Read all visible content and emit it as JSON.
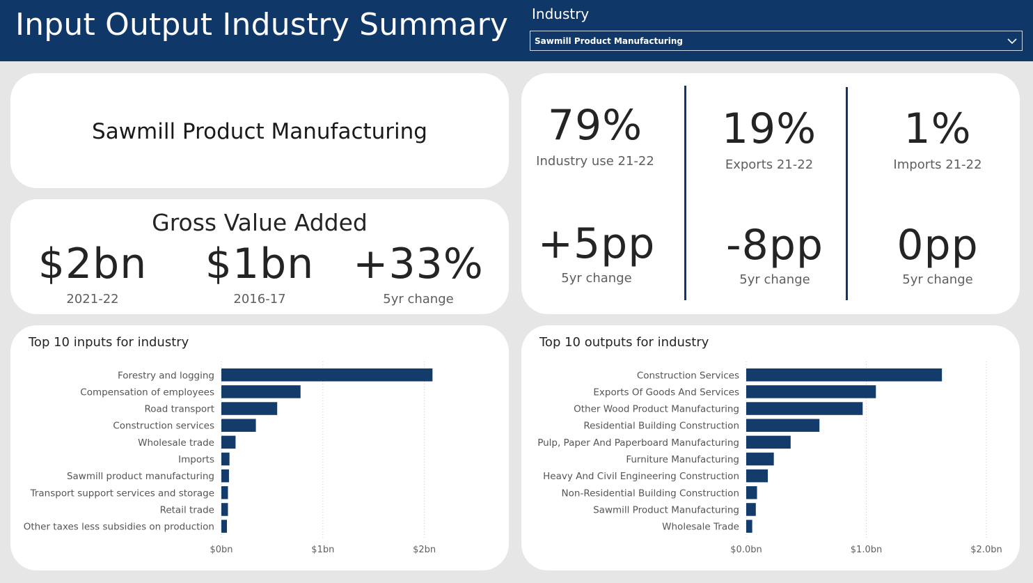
{
  "header": {
    "title": "Input Output Industry Summary",
    "slicer_label": "Industry",
    "slicer_value": "Sawmill Product Manufacturing"
  },
  "industry_card": {
    "name": "Sawmill Product Manufacturing"
  },
  "gva": {
    "title": "Gross Value Added",
    "kpis": [
      {
        "value": "$2bn",
        "label": "2021-22"
      },
      {
        "value": "$1bn",
        "label": "2016-17"
      },
      {
        "value": "+33%",
        "label": "5yr change"
      }
    ]
  },
  "shares": {
    "top": [
      {
        "value": "79%",
        "label": "Industry use 21-22"
      },
      {
        "value": "19%",
        "label": "Exports 21-22"
      },
      {
        "value": "1%",
        "label": "Imports 21-22"
      }
    ],
    "bottom": [
      {
        "value": "+5pp",
        "label": "5yr change"
      },
      {
        "value": "-8pp",
        "label": "5yr change"
      },
      {
        "value": "0pp",
        "label": "5yr change"
      }
    ]
  },
  "colors": {
    "brand": "#0f3869",
    "bar": "#133c6b",
    "background": "#e6e6e6"
  },
  "chart_data": [
    {
      "type": "bar",
      "orientation": "horizontal",
      "title": "Top 10 inputs for industry",
      "categories": [
        "Forestry and logging",
        "Compensation of employees",
        "Road transport",
        "Construction services",
        "Wholesale trade",
        "Imports",
        "Sawmill product manufacturing",
        "Transport support services and storage",
        "Retail trade",
        "Other taxes less subsidies on production"
      ],
      "values": [
        2.08,
        0.78,
        0.55,
        0.34,
        0.14,
        0.08,
        0.075,
        0.065,
        0.065,
        0.055
      ],
      "xlim": [
        0,
        2.4
      ],
      "xticks": [
        0,
        1,
        2
      ],
      "xtick_labels": [
        "$0bn",
        "$1bn",
        "$2bn"
      ],
      "unit": "$bn",
      "grid": true
    },
    {
      "type": "bar",
      "orientation": "horizontal",
      "title": "Top 10 outputs for industry",
      "categories": [
        "Construction Services",
        "Exports Of Goods And Services",
        "Other Wood Product Manufacturing",
        "Residential Building Construction",
        "Pulp, Paper And Paperboard Manufacturing",
        "Furniture Manufacturing",
        "Heavy And Civil Engineering Construction",
        "Non-Residential Building Construction",
        "Sawmill Product Manufacturing",
        "Wholesale Trade"
      ],
      "values": [
        1.63,
        1.08,
        0.97,
        0.61,
        0.37,
        0.23,
        0.18,
        0.09,
        0.08,
        0.05
      ],
      "xlim": [
        0,
        2.0
      ],
      "xticks": [
        0,
        1,
        2
      ],
      "xtick_labels": [
        "$0.0bn",
        "$1.0bn",
        "$2.0bn"
      ],
      "unit": "$bn",
      "grid": true
    }
  ]
}
